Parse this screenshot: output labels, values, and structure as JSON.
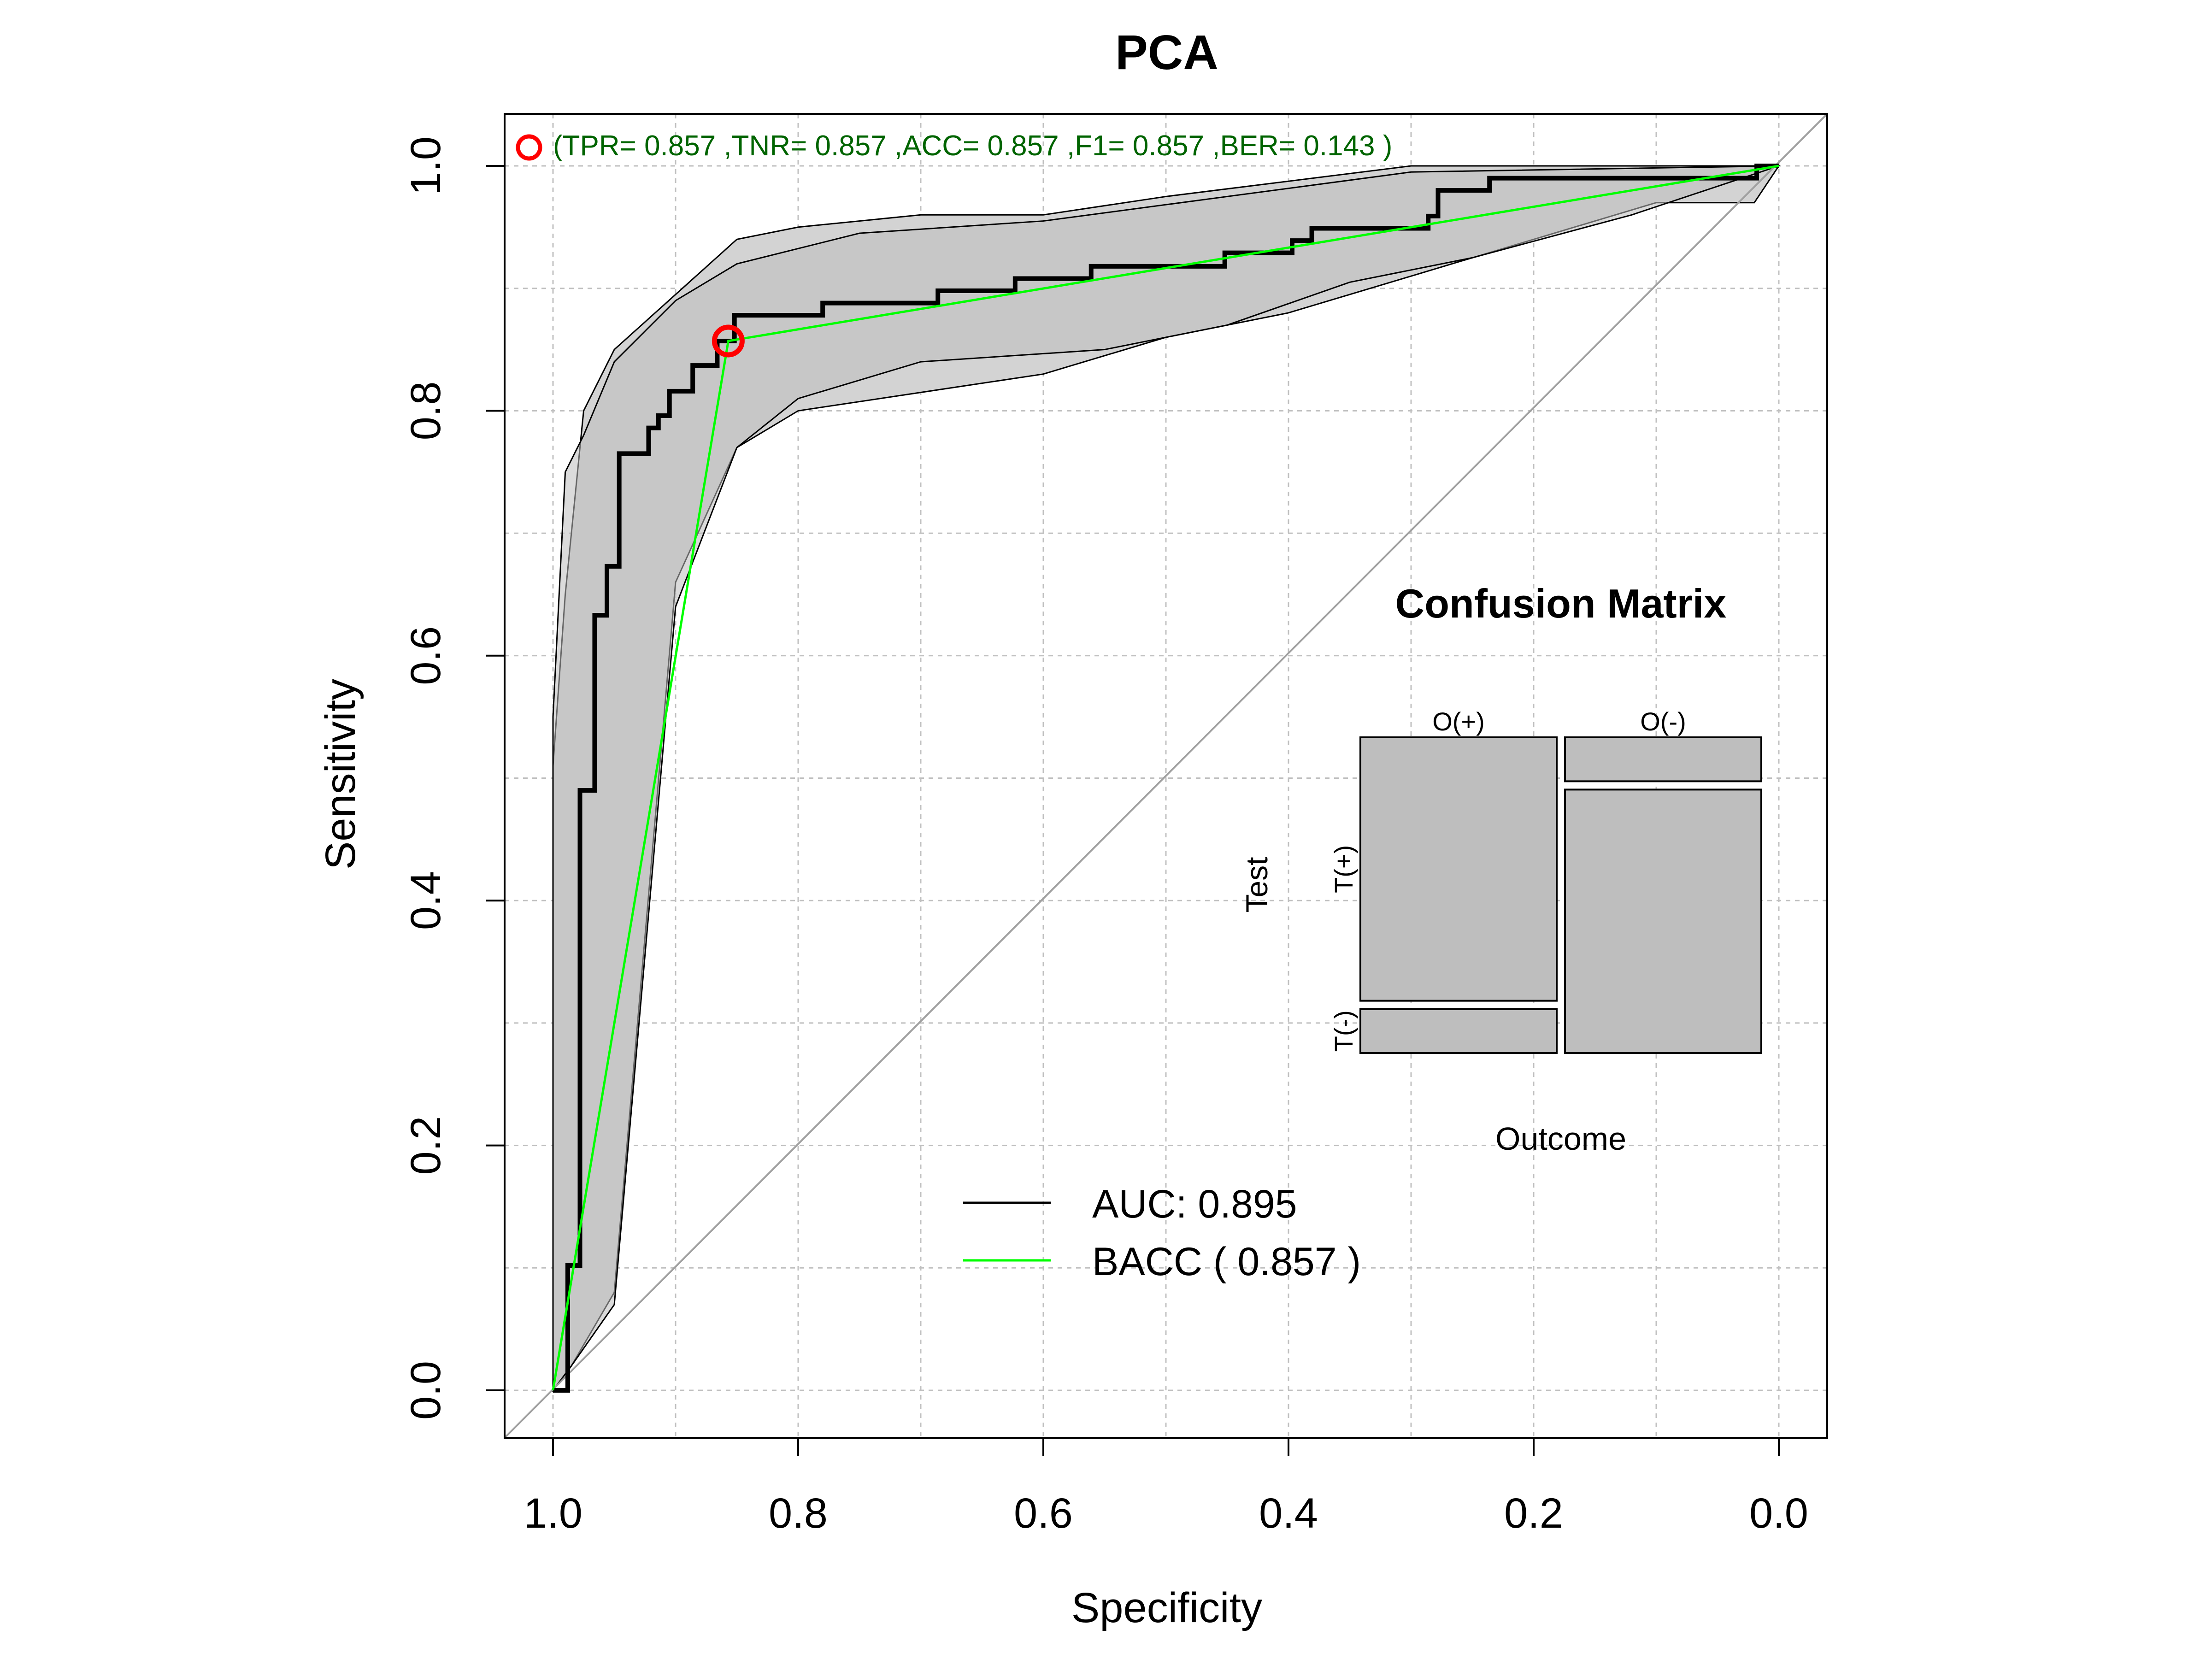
{
  "chart_data": {
    "type": "line",
    "title": "PCA",
    "xlabel": "Specificity",
    "ylabel": "Sensitivity",
    "xlim": [
      1.0,
      0.0
    ],
    "ylim": [
      0.0,
      1.0
    ],
    "x_reversed": true,
    "grid": true,
    "xticks": [
      {
        "value": 1.0,
        "label": "1.0"
      },
      {
        "value": 0.8,
        "label": "0.8"
      },
      {
        "value": 0.6,
        "label": "0.6"
      },
      {
        "value": 0.4,
        "label": "0.4"
      },
      {
        "value": 0.2,
        "label": "0.2"
      },
      {
        "value": 0.0,
        "label": "0.0"
      }
    ],
    "yticks": [
      {
        "value": 0.0,
        "label": "0.0"
      },
      {
        "value": 0.2,
        "label": "0.2"
      },
      {
        "value": 0.4,
        "label": "0.4"
      },
      {
        "value": 0.6,
        "label": "0.6"
      },
      {
        "value": 0.8,
        "label": "0.8"
      },
      {
        "value": 1.0,
        "label": "1.0"
      }
    ],
    "threshold_annotation": "(TPR= 0.857 ,TNR= 0.857 ,ACC= 0.857 ,F1= 0.857 ,BER= 0.143 )",
    "optimal_point": {
      "specificity": 0.857,
      "sensitivity": 0.857
    },
    "legend": {
      "placement": "bottom-center",
      "entries": [
        {
          "label": "AUC:  0.895",
          "color": "#000000"
        },
        {
          "label": "BACC ( 0.857 )",
          "color": "#00ff00"
        }
      ]
    },
    "colors": {
      "roc": "#000000",
      "bacc": "#00ff00",
      "ci_fill": "#d3d3d3",
      "ci_overlap": "#bebebe",
      "diagonal": "#a0a0a0",
      "annotation_text": "#006400",
      "marker": "#ff0000",
      "grid": "#c0c0c0"
    },
    "series": [
      {
        "name": "AUC:  0.895",
        "kind": "step",
        "points": [
          [
            1.0,
            0.0
          ],
          [
            0.988,
            0.0
          ],
          [
            0.988,
            0.102
          ],
          [
            0.978,
            0.102
          ],
          [
            0.978,
            0.49
          ],
          [
            0.966,
            0.49
          ],
          [
            0.966,
            0.633
          ],
          [
            0.956,
            0.633
          ],
          [
            0.956,
            0.673
          ],
          [
            0.946,
            0.673
          ],
          [
            0.946,
            0.765
          ],
          [
            0.922,
            0.765
          ],
          [
            0.922,
            0.786
          ],
          [
            0.914,
            0.786
          ],
          [
            0.914,
            0.796
          ],
          [
            0.905,
            0.796
          ],
          [
            0.905,
            0.816
          ],
          [
            0.886,
            0.816
          ],
          [
            0.886,
            0.837
          ],
          [
            0.866,
            0.837
          ],
          [
            0.866,
            0.857
          ],
          [
            0.852,
            0.857
          ],
          [
            0.852,
            0.878
          ],
          [
            0.78,
            0.878
          ],
          [
            0.78,
            0.888
          ],
          [
            0.686,
            0.888
          ],
          [
            0.686,
            0.898
          ],
          [
            0.623,
            0.898
          ],
          [
            0.623,
            0.908
          ],
          [
            0.561,
            0.908
          ],
          [
            0.561,
            0.918
          ],
          [
            0.452,
            0.918
          ],
          [
            0.452,
            0.929
          ],
          [
            0.397,
            0.929
          ],
          [
            0.397,
            0.939
          ],
          [
            0.381,
            0.939
          ],
          [
            0.381,
            0.949
          ],
          [
            0.286,
            0.949
          ],
          [
            0.286,
            0.959
          ],
          [
            0.278,
            0.959
          ],
          [
            0.278,
            0.98
          ],
          [
            0.236,
            0.98
          ],
          [
            0.236,
            0.99
          ],
          [
            0.018,
            0.99
          ],
          [
            0.018,
            1.0
          ],
          [
            0.0,
            1.0
          ]
        ]
      },
      {
        "name": "BACC ( 0.857 )",
        "kind": "line",
        "points": [
          [
            1.0,
            0.0
          ],
          [
            0.857,
            0.857
          ],
          [
            0.0,
            1.0
          ]
        ]
      }
    ],
    "ci_band_1": {
      "upper": [
        [
          1.0,
          0.51
        ],
        [
          0.99,
          0.65
        ],
        [
          0.975,
          0.8
        ],
        [
          0.95,
          0.85
        ],
        [
          0.9,
          0.895
        ],
        [
          0.85,
          0.94
        ],
        [
          0.8,
          0.95
        ],
        [
          0.7,
          0.96
        ],
        [
          0.6,
          0.96
        ],
        [
          0.5,
          0.975
        ],
        [
          0.3,
          1.0
        ],
        [
          0.0,
          1.0
        ]
      ],
      "lower": [
        [
          0.0,
          1.0
        ],
        [
          0.02,
          0.97
        ],
        [
          0.1,
          0.97
        ],
        [
          0.2,
          0.94
        ],
        [
          0.3,
          0.91
        ],
        [
          0.4,
          0.88
        ],
        [
          0.5,
          0.86
        ],
        [
          0.6,
          0.83
        ],
        [
          0.8,
          0.8
        ],
        [
          0.85,
          0.77
        ],
        [
          0.9,
          0.66
        ],
        [
          0.95,
          0.08
        ],
        [
          0.985,
          0.02
        ],
        [
          1.0,
          0.0
        ]
      ]
    },
    "ci_band_2": {
      "upper": [
        [
          1.0,
          0.55
        ],
        [
          0.99,
          0.75
        ],
        [
          0.975,
          0.78
        ],
        [
          0.95,
          0.84
        ],
        [
          0.9,
          0.89
        ],
        [
          0.85,
          0.92
        ],
        [
          0.75,
          0.945
        ],
        [
          0.6,
          0.955
        ],
        [
          0.45,
          0.975
        ],
        [
          0.3,
          0.995
        ],
        [
          0.0,
          1.0
        ]
      ],
      "lower": [
        [
          0.0,
          1.0
        ],
        [
          0.12,
          0.96
        ],
        [
          0.25,
          0.925
        ],
        [
          0.35,
          0.905
        ],
        [
          0.45,
          0.87
        ],
        [
          0.55,
          0.85
        ],
        [
          0.7,
          0.84
        ],
        [
          0.8,
          0.81
        ],
        [
          0.85,
          0.77
        ],
        [
          0.9,
          0.64
        ],
        [
          0.95,
          0.07
        ],
        [
          0.985,
          0.02
        ],
        [
          1.0,
          0.0
        ]
      ]
    },
    "confusion_matrix": {
      "title": "Confusion Matrix",
      "col_labels": [
        "O(+)",
        "O(-)"
      ],
      "row_labels": [
        "T(+)",
        "T(-)"
      ],
      "row_axis_label": "Test",
      "col_axis_label": "Outcome",
      "proportions": {
        "pos_outcome_col_share": 0.5,
        "tp_share_of_pos": 0.857,
        "fp_share_of_neg": 0.143
      }
    }
  }
}
